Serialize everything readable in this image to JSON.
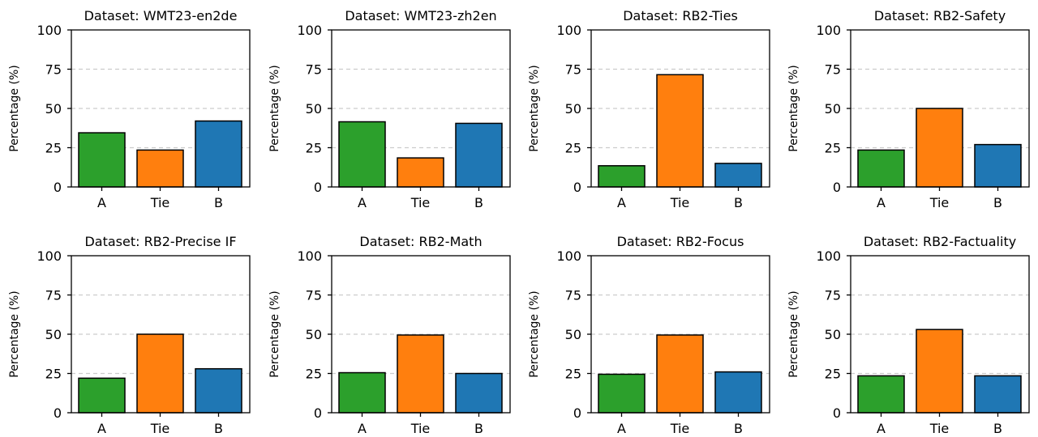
{
  "colors": {
    "A": "#2ca02c",
    "Tie": "#ff7f0e",
    "B": "#1f77b4"
  },
  "chart_data": [
    {
      "type": "bar",
      "title": "Dataset: WMT23-en2de",
      "categories": [
        "A",
        "Tie",
        "B"
      ],
      "values": [
        34.5,
        23.5,
        42.0
      ],
      "ylabel": "Percentage (%)",
      "yticks": [
        0,
        25,
        50,
        75,
        100
      ],
      "ylim": [
        0,
        100
      ],
      "grid": "y dashed"
    },
    {
      "type": "bar",
      "title": "Dataset: WMT23-zh2en",
      "categories": [
        "A",
        "Tie",
        "B"
      ],
      "values": [
        41.5,
        18.5,
        40.5
      ],
      "ylabel": "Percentage (%)",
      "yticks": [
        0,
        25,
        50,
        75,
        100
      ],
      "ylim": [
        0,
        100
      ],
      "grid": "y dashed"
    },
    {
      "type": "bar",
      "title": "Dataset: RB2-Ties",
      "categories": [
        "A",
        "Tie",
        "B"
      ],
      "values": [
        13.5,
        71.5,
        15.0
      ],
      "ylabel": "Percentage (%)",
      "yticks": [
        0,
        25,
        50,
        75,
        100
      ],
      "ylim": [
        0,
        100
      ],
      "grid": "y dashed"
    },
    {
      "type": "bar",
      "title": "Dataset: RB2-Safety",
      "categories": [
        "A",
        "Tie",
        "B"
      ],
      "values": [
        23.5,
        50.0,
        27.0
      ],
      "ylabel": "Percentage (%)",
      "yticks": [
        0,
        25,
        50,
        75,
        100
      ],
      "ylim": [
        0,
        100
      ],
      "grid": "y dashed"
    },
    {
      "type": "bar",
      "title": "Dataset: RB2-Precise IF",
      "categories": [
        "A",
        "Tie",
        "B"
      ],
      "values": [
        22.0,
        50.0,
        28.0
      ],
      "ylabel": "Percentage (%)",
      "yticks": [
        0,
        25,
        50,
        75,
        100
      ],
      "ylim": [
        0,
        100
      ],
      "grid": "y dashed"
    },
    {
      "type": "bar",
      "title": "Dataset: RB2-Math",
      "categories": [
        "A",
        "Tie",
        "B"
      ],
      "values": [
        25.5,
        49.5,
        25.0
      ],
      "ylabel": "Percentage (%)",
      "yticks": [
        0,
        25,
        50,
        75,
        100
      ],
      "ylim": [
        0,
        100
      ],
      "grid": "y dashed"
    },
    {
      "type": "bar",
      "title": "Dataset: RB2-Focus",
      "categories": [
        "A",
        "Tie",
        "B"
      ],
      "values": [
        24.5,
        49.5,
        26.0
      ],
      "ylabel": "Percentage (%)",
      "yticks": [
        0,
        25,
        50,
        75,
        100
      ],
      "ylim": [
        0,
        100
      ],
      "grid": "y dashed"
    },
    {
      "type": "bar",
      "title": "Dataset: RB2-Factuality",
      "categories": [
        "A",
        "Tie",
        "B"
      ],
      "values": [
        23.5,
        53.0,
        23.5
      ],
      "ylabel": "Percentage (%)",
      "yticks": [
        0,
        25,
        50,
        75,
        100
      ],
      "ylim": [
        0,
        100
      ],
      "grid": "y dashed"
    }
  ]
}
